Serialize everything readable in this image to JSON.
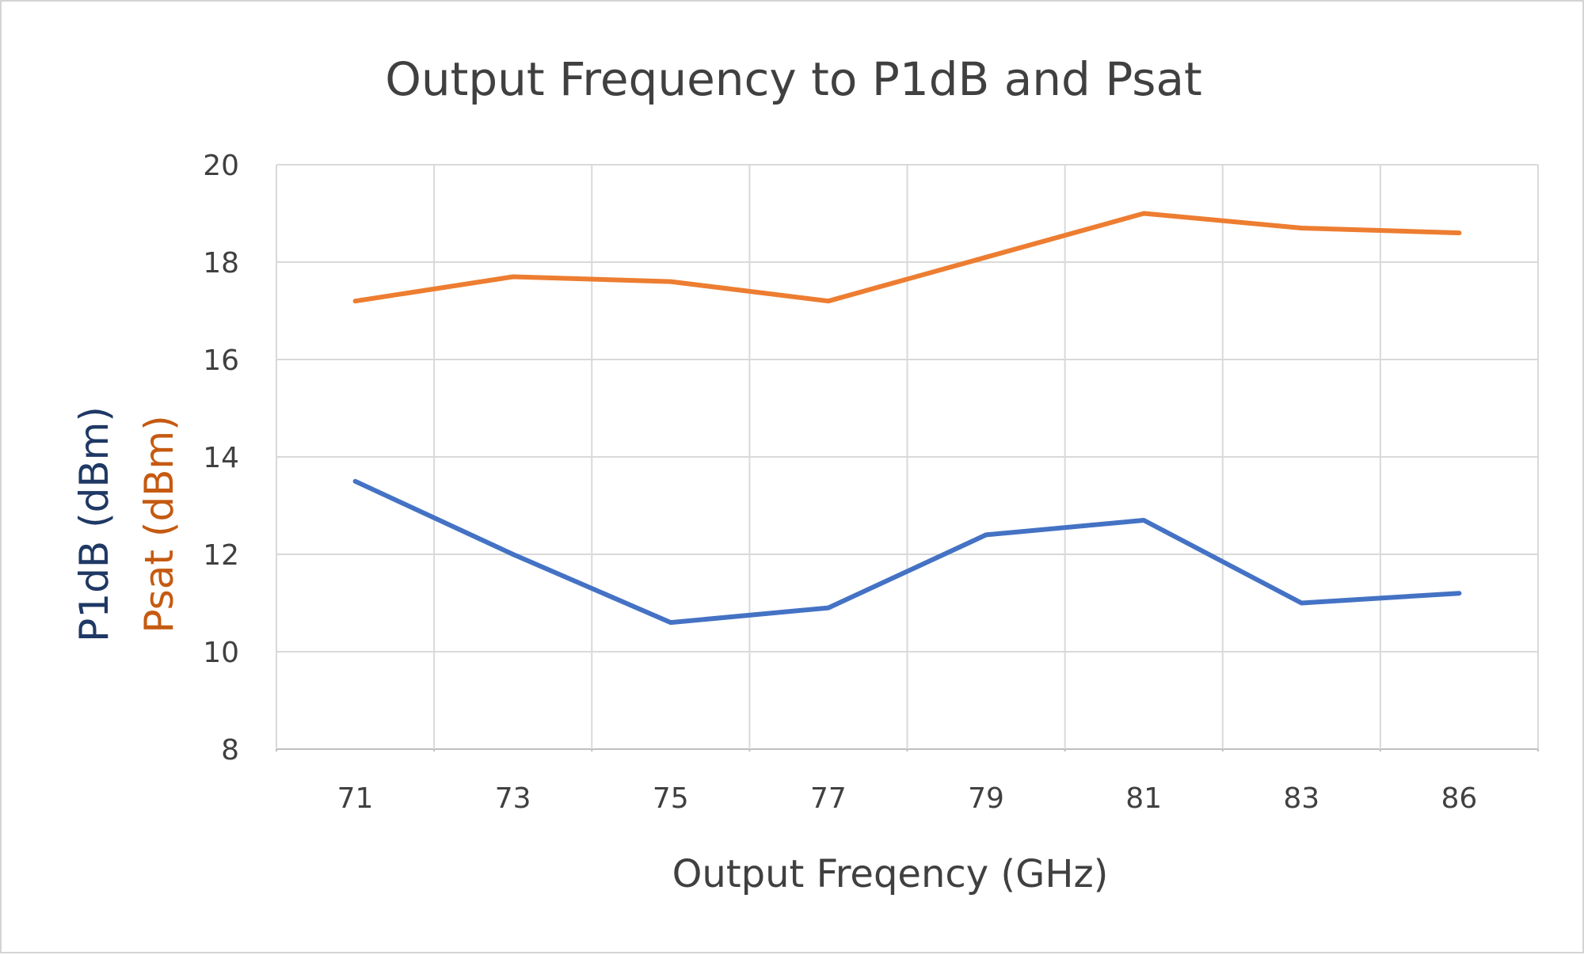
{
  "chart_data": {
    "type": "line",
    "title": "Output Frequency to P1dB and Psat",
    "xlabel": "Output Freqency (GHz)",
    "ylabel_lines": [
      {
        "text": "P1dB (dBm)",
        "color": "#1f3864"
      },
      {
        "text": "Psat (dBm)",
        "color": "#c55a11"
      }
    ],
    "categories": [
      "71",
      "73",
      "75",
      "77",
      "79",
      "81",
      "83",
      "86"
    ],
    "ylim": [
      8,
      20
    ],
    "yticks": [
      "8",
      "10",
      "12",
      "14",
      "16",
      "18",
      "20"
    ],
    "grid": true,
    "legend": "none",
    "series": [
      {
        "key": "p1db",
        "color": "#4472c4",
        "values": [
          13.5,
          12.0,
          10.6,
          10.9,
          12.4,
          12.7,
          11.0,
          11.2
        ]
      },
      {
        "key": "psat",
        "color": "#ed7d31",
        "values": [
          17.2,
          17.7,
          17.6,
          17.2,
          18.1,
          19.0,
          18.7,
          18.6
        ]
      }
    ]
  }
}
